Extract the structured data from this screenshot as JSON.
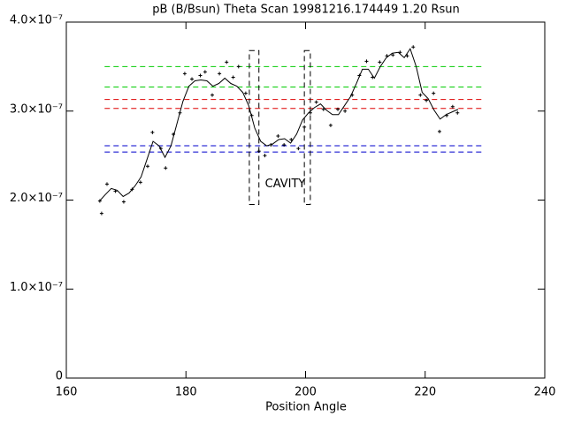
{
  "chart_data": {
    "type": "line",
    "title": "pB (B/Bsun) Theta Scan 19981216.174449 1.20 Rsun",
    "x_label": "Position Angle",
    "xlim": [
      160,
      240
    ],
    "xticks": [
      160,
      180,
      200,
      220,
      240
    ],
    "ylim": [
      0,
      4e-07
    ],
    "yticks": [
      0,
      {
        "value": 1e-07,
        "label": "1.0×10⁻⁷"
      },
      {
        "value": 2e-07,
        "label": "2.0×10⁻⁷"
      },
      {
        "value": 3e-07,
        "label": "3.0×10⁻⁷"
      },
      {
        "value": 4e-07,
        "label": "4.0×10⁻⁷"
      }
    ],
    "series": [
      {
        "kind": "line",
        "color": "#000000",
        "x": [
          165.5,
          166.5,
          167.5,
          168.5,
          169.5,
          170.5,
          171.5,
          172.5,
          173.5,
          174.5,
          175.5,
          176.5,
          177.5,
          178.5,
          179.5,
          180.5,
          181.5,
          182.5,
          183.5,
          184.5,
          185.5,
          186.5,
          187.5,
          188.5,
          189.5,
          190.5,
          191.5,
          192.5,
          193.5,
          194.5,
          195.5,
          196.5,
          197.5,
          198.5,
          199.5,
          200.5,
          201.5,
          202.5,
          203.5,
          204.5,
          205.5,
          206.5,
          207.5,
          208.5,
          209.5,
          210.5,
          211.5,
          212.5,
          213.5,
          214.5,
          215.5,
          216.5,
          217.5,
          218.5,
          219.5,
          220.5,
          221.5,
          222.5,
          223.5,
          224.5,
          225.5
        ],
        "values": [
          1.985e-07,
          2.06e-07,
          2.13e-07,
          2.11e-07,
          2.04e-07,
          2.08e-07,
          2.16e-07,
          2.26e-07,
          2.46e-07,
          2.66e-07,
          2.61e-07,
          2.48e-07,
          2.61e-07,
          2.86e-07,
          3.11e-07,
          3.28e-07,
          3.34e-07,
          3.35e-07,
          3.34e-07,
          3.28e-07,
          3.31e-07,
          3.37e-07,
          3.31e-07,
          3.28e-07,
          3.21e-07,
          3.06e-07,
          2.81e-07,
          2.66e-07,
          2.61e-07,
          2.63e-07,
          2.68e-07,
          2.69e-07,
          2.64e-07,
          2.74e-07,
          2.9e-07,
          2.98e-07,
          3.04e-07,
          3.08e-07,
          3.01e-07,
          2.96e-07,
          2.96e-07,
          3.06e-07,
          3.16e-07,
          3.31e-07,
          3.47e-07,
          3.47e-07,
          3.37e-07,
          3.5e-07,
          3.6e-07,
          3.65e-07,
          3.66e-07,
          3.6e-07,
          3.7e-07,
          3.5e-07,
          3.21e-07,
          3.14e-07,
          3.01e-07,
          2.91e-07,
          2.96e-07,
          2.99e-07,
          3.02e-07
        ]
      },
      {
        "kind": "scatter",
        "color": "#000000",
        "x": [
          165.6,
          165.9,
          166.8,
          168.2,
          169.6,
          171.0,
          172.4,
          173.6,
          174.4,
          175.8,
          176.6,
          177.9,
          179.0,
          179.8,
          181.0,
          182.4,
          183.2,
          184.4,
          185.6,
          186.8,
          187.9,
          188.8,
          190.0,
          191.0,
          192.2,
          193.2,
          194.2,
          195.4,
          196.4,
          197.6,
          198.8,
          199.8,
          200.8,
          201.8,
          203.0,
          204.2,
          205.4,
          206.6,
          207.8,
          209.0,
          210.2,
          211.2,
          212.4,
          213.6,
          214.6,
          215.8,
          217.0,
          218.0,
          219.2,
          220.2,
          221.4,
          222.4,
          223.6,
          224.6,
          225.4
        ],
        "values": [
          1.99e-07,
          1.85e-07,
          2.18e-07,
          2.1e-07,
          1.98e-07,
          2.12e-07,
          2.2e-07,
          2.38e-07,
          2.76e-07,
          2.58e-07,
          2.36e-07,
          2.74e-07,
          2.98e-07,
          3.42e-07,
          3.36e-07,
          3.4e-07,
          3.44e-07,
          3.18e-07,
          3.42e-07,
          3.55e-07,
          3.38e-07,
          3.5e-07,
          3.2e-07,
          2.95e-07,
          2.55e-07,
          2.5e-07,
          2.62e-07,
          2.72e-07,
          2.62e-07,
          2.68e-07,
          2.58e-07,
          2.82e-07,
          2.98e-07,
          3.1e-07,
          3.02e-07,
          2.84e-07,
          3.02e-07,
          3e-07,
          3.18e-07,
          3.4e-07,
          3.56e-07,
          3.38e-07,
          3.55e-07,
          3.62e-07,
          3.63e-07,
          3.66e-07,
          3.62e-07,
          3.72e-07,
          3.18e-07,
          3.12e-07,
          3.2e-07,
          2.77e-07,
          2.95e-07,
          3.05e-07,
          2.98e-07
        ]
      }
    ],
    "hlines": [
      {
        "value": 3.5e-07,
        "color": "#00cc00"
      },
      {
        "value": 3.27e-07,
        "color": "#00cc00"
      },
      {
        "value": 3.13e-07,
        "color": "#dd0000"
      },
      {
        "value": 3.03e-07,
        "color": "#dd0000"
      },
      {
        "value": 2.61e-07,
        "color": "#0000cc"
      },
      {
        "value": 2.54e-07,
        "color": "#0000cc"
      }
    ],
    "hline_xrange": [
      166.4,
      229.4
    ],
    "regions": [
      {
        "x": [
          190.6,
          192.2
        ],
        "y": [
          1.95e-07,
          3.68e-07
        ]
      },
      {
        "x": [
          199.8,
          200.8
        ],
        "y": [
          1.95e-07,
          3.68e-07
        ]
      }
    ],
    "annotation": {
      "text": "CAVITY",
      "x": 196.6,
      "y": 2.18e-07,
      "color": "#dd0000"
    }
  }
}
